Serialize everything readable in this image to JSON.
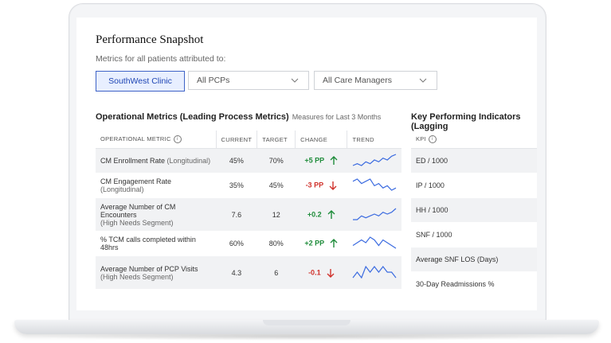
{
  "page": {
    "title": "Performance Snapshot",
    "subtitle": "Metrics for all patients attributed to:"
  },
  "filters": {
    "clinic": "SouthWest Clinic",
    "pcps": "All PCPs",
    "care_managers": "All Care Managers"
  },
  "operational": {
    "title": "Operational Metrics (Leading Process Metrics)",
    "note": "Measures for Last 3 Months",
    "headers": {
      "metric": "OPERATIONAL METRIC",
      "current": "CURRENT",
      "target": "TARGET",
      "change": "CHANGE",
      "trend": "TREND"
    },
    "rows": [
      {
        "name": "CM Enrollment Rate",
        "qualifier": "(Longitudinal)",
        "current": "45%",
        "target": "70%",
        "change": "+5 PP",
        "direction": "up",
        "trend": [
          3,
          4,
          3,
          5,
          4,
          6,
          5,
          7,
          6,
          8,
          9
        ]
      },
      {
        "name": "CM Engagement Rate",
        "qualifier": "(Longitudinal)",
        "current": "35%",
        "target": "45%",
        "change": "-3 PP",
        "direction": "down",
        "trend": [
          7,
          8,
          6,
          7,
          8,
          5,
          6,
          4,
          5,
          3,
          4
        ]
      },
      {
        "name": "Average Number of CM Encounters",
        "qualifier": "(High Needs Segment)",
        "current": "7.6",
        "target": "12",
        "change": "+0.2",
        "direction": "up",
        "trend": [
          4,
          4,
          5,
          4.5,
          5,
          5.5,
          5,
          6,
          5.5,
          6,
          7
        ]
      },
      {
        "name": "% TCM calls completed within 48hrs",
        "qualifier": "",
        "current": "60%",
        "target": "80%",
        "change": "+2 PP",
        "direction": "up",
        "trend": [
          4,
          5,
          6,
          5,
          7,
          6,
          4,
          6,
          5,
          4,
          3
        ]
      },
      {
        "name": "Average Number of PCP Visits",
        "qualifier": "(High Needs Segment)",
        "current": "4.3",
        "target": "6",
        "change": "-0.1",
        "direction": "down",
        "trend": [
          5,
          5.5,
          5,
          6,
          5.5,
          6,
          5.5,
          6,
          5.5,
          5.5,
          5
        ]
      }
    ]
  },
  "kpi": {
    "title": "Key Performing Indicators (Lagging",
    "header": "KPI",
    "rows": [
      "ED / 1000",
      "IP / 1000",
      "HH / 1000",
      "SNF / 1000",
      "Average SNF LOS (Days)",
      "30-Day Readmissions %"
    ]
  },
  "colors": {
    "positive": "#1e8c3a",
    "negative": "#d0322c",
    "accent": "#1f46b4",
    "sparkline": "#3b6be0"
  }
}
